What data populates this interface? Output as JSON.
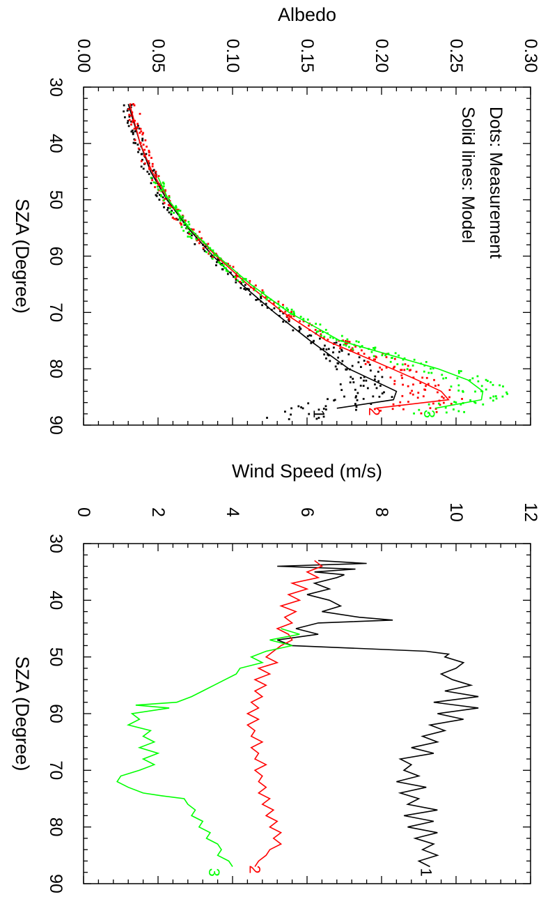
{
  "colors": {
    "black": "#000000",
    "red": "#ff0000",
    "green": "#00ff00"
  },
  "chart_data": [
    {
      "type": "scatter",
      "title": "",
      "xlabel": "SZA (Degree)",
      "ylabel": "Albedo",
      "xlim": [
        30,
        90
      ],
      "ylim": [
        0.0,
        0.3
      ],
      "x_ticks": [
        "30",
        "40",
        "50",
        "60",
        "70",
        "80",
        "90"
      ],
      "y_ticks": [
        "0.00",
        "0.05",
        "0.10",
        "0.15",
        "0.20",
        "0.25",
        "0.30"
      ],
      "annotations": [
        "Dots: Measurement",
        "Solid lines: Model"
      ],
      "orientation": "rotated-90",
      "grid": false,
      "series": [
        {
          "label": "1",
          "color": "#000000",
          "model_x": [
            33,
            40,
            45,
            50,
            55,
            60,
            65,
            70,
            75,
            80,
            82,
            84,
            85.5,
            87
          ],
          "model_y": [
            0.03,
            0.038,
            0.045,
            0.056,
            0.07,
            0.087,
            0.106,
            0.128,
            0.152,
            0.178,
            0.194,
            0.21,
            0.208,
            0.17
          ],
          "meas_x": [
            33,
            35,
            37,
            39,
            41,
            43,
            45,
            47,
            49,
            51,
            53,
            55,
            57,
            59,
            61,
            63,
            65,
            67,
            69,
            71,
            73,
            75,
            76,
            77,
            78,
            79,
            80,
            81,
            82,
            83,
            84,
            85,
            86,
            87,
            88
          ],
          "meas_y": [
            0.029,
            0.031,
            0.033,
            0.036,
            0.038,
            0.041,
            0.044,
            0.048,
            0.052,
            0.057,
            0.063,
            0.068,
            0.075,
            0.082,
            0.09,
            0.099,
            0.106,
            0.116,
            0.125,
            0.134,
            0.145,
            0.157,
            0.166,
            0.172,
            0.176,
            0.178,
            0.181,
            0.186,
            0.19,
            0.188,
            0.19,
            0.186,
            0.175,
            0.163,
            0.148
          ]
        },
        {
          "label": "2",
          "color": "#ff0000",
          "model_x": [
            33,
            40,
            45,
            50,
            55,
            60,
            65,
            70,
            75,
            80,
            82,
            84,
            85.5,
            87
          ],
          "model_y": [
            0.031,
            0.038,
            0.046,
            0.057,
            0.071,
            0.089,
            0.11,
            0.134,
            0.163,
            0.207,
            0.224,
            0.24,
            0.245,
            0.196
          ],
          "meas_x": [
            33,
            35,
            37,
            39,
            41,
            43,
            45,
            47,
            49,
            51,
            53,
            55,
            57,
            59,
            61,
            63,
            65,
            67,
            69,
            71,
            73,
            75,
            76,
            77,
            78,
            79,
            80,
            81,
            82,
            83,
            84,
            85,
            86,
            87
          ],
          "meas_y": [
            0.034,
            0.034,
            0.036,
            0.038,
            0.04,
            0.042,
            0.046,
            0.05,
            0.053,
            0.059,
            0.063,
            0.072,
            0.078,
            0.085,
            0.094,
            0.102,
            0.111,
            0.121,
            0.132,
            0.141,
            0.154,
            0.17,
            0.178,
            0.19,
            0.197,
            0.203,
            0.208,
            0.214,
            0.22,
            0.224,
            0.23,
            0.235,
            0.23,
            0.214
          ]
        },
        {
          "label": "3",
          "color": "#00ff00",
          "model_x": [
            46,
            50,
            55,
            60,
            65,
            70,
            75,
            80,
            82,
            84,
            85.5,
            87
          ],
          "model_y": [
            0.05,
            0.057,
            0.071,
            0.09,
            0.112,
            0.138,
            0.172,
            0.238,
            0.258,
            0.268,
            0.267,
            0.236
          ],
          "meas_x": [
            46,
            48,
            50,
            52,
            54,
            56,
            58,
            60,
            62,
            64,
            66,
            68,
            70,
            72,
            74,
            75,
            76,
            77,
            78,
            79,
            80,
            81,
            82,
            83,
            84,
            85,
            86,
            87
          ],
          "meas_y": [
            0.048,
            0.052,
            0.056,
            0.062,
            0.067,
            0.072,
            0.079,
            0.087,
            0.096,
            0.105,
            0.116,
            0.128,
            0.14,
            0.153,
            0.166,
            0.174,
            0.185,
            0.196,
            0.207,
            0.219,
            0.232,
            0.245,
            0.256,
            0.264,
            0.27,
            0.266,
            0.258,
            0.245
          ]
        }
      ],
      "end_labels": [
        {
          "text": "1",
          "x": 88.0,
          "y": 0.158
        },
        {
          "text": "2",
          "x": 87.6,
          "y": 0.195
        },
        {
          "text": "3",
          "x": 88.0,
          "y": 0.232
        }
      ]
    },
    {
      "type": "line",
      "title": "",
      "xlabel": "SZA (Degree)",
      "ylabel": "Wind Speed (m/s)",
      "xlim": [
        30,
        90
      ],
      "ylim": [
        0,
        12
      ],
      "x_ticks": [
        "30",
        "40",
        "50",
        "60",
        "70",
        "80",
        "90"
      ],
      "y_ticks": [
        "0",
        "2",
        "4",
        "6",
        "8",
        "10",
        "12"
      ],
      "orientation": "rotated-90",
      "grid": false,
      "series": [
        {
          "label": "1",
          "color": "#000000",
          "x": [
            33,
            33.5,
            34,
            34.5,
            35,
            35.5,
            36,
            37,
            38,
            39,
            40,
            41,
            42,
            43,
            43.5,
            44,
            45,
            46,
            47,
            48,
            49,
            49.5,
            50,
            51,
            52,
            53,
            54,
            55,
            56,
            57,
            58,
            59,
            60,
            61,
            62,
            63,
            64,
            65,
            66,
            67,
            68,
            69,
            70,
            71,
            72,
            73,
            74,
            75,
            76,
            77,
            78,
            79,
            80,
            81,
            82,
            83,
            84,
            85,
            86,
            87
          ],
          "y": [
            6.3,
            7.6,
            5.2,
            7.3,
            6.2,
            7.0,
            6.8,
            6.2,
            6.6,
            6.0,
            6.6,
            6.9,
            6.4,
            7.4,
            8.3,
            6.3,
            5.7,
            6.3,
            5.2,
            5.6,
            9.2,
            9.8,
            9.7,
            10.2,
            10.0,
            9.6,
            9.9,
            10.4,
            9.7,
            10.6,
            9.4,
            10.6,
            9.5,
            10.2,
            9.3,
            9.7,
            9.1,
            9.5,
            8.8,
            9.4,
            8.5,
            8.8,
            8.6,
            9.0,
            8.4,
            9.2,
            8.5,
            9.0,
            8.7,
            9.5,
            8.6,
            9.4,
            8.7,
            9.5,
            8.9,
            9.4,
            9.1,
            9.5,
            9.0,
            9.3
          ]
        },
        {
          "label": "2",
          "color": "#ff0000",
          "x": [
            33,
            34,
            35,
            36,
            37,
            38,
            39,
            40,
            41,
            42,
            43,
            44,
            45,
            46,
            47,
            48,
            49,
            50,
            51,
            52,
            53,
            54,
            55,
            56,
            57,
            58,
            59,
            60,
            61,
            62,
            63,
            64,
            65,
            66,
            67,
            68,
            69,
            70,
            71,
            72,
            73,
            74,
            75,
            76,
            77,
            78,
            79,
            80,
            81,
            82,
            83,
            84,
            85,
            86,
            87
          ],
          "y": [
            6.2,
            6.4,
            6.0,
            6.3,
            5.6,
            6.0,
            5.5,
            5.8,
            5.3,
            5.7,
            5.4,
            5.6,
            5.2,
            5.5,
            5.6,
            5.3,
            5.1,
            4.9,
            5.2,
            4.7,
            5.0,
            4.6,
            4.9,
            4.6,
            4.8,
            4.5,
            4.7,
            4.4,
            4.7,
            4.4,
            4.6,
            4.5,
            4.8,
            4.5,
            4.7,
            4.6,
            4.9,
            4.6,
            4.8,
            4.7,
            4.9,
            4.7,
            5.0,
            4.8,
            5.1,
            4.9,
            5.2,
            5.0,
            5.3,
            5.1,
            5.3,
            5.0,
            4.9,
            4.7,
            4.6
          ]
        },
        {
          "label": "3",
          "color": "#00ff00",
          "x": [
            45,
            46,
            47,
            48,
            49,
            50,
            51,
            52,
            53,
            54,
            55,
            56,
            57,
            58,
            58.5,
            59,
            60,
            61,
            62,
            63,
            64,
            65,
            66,
            67,
            68,
            69,
            70,
            71,
            72,
            73,
            74,
            74.5,
            75,
            76,
            77,
            78,
            79,
            80,
            81,
            82,
            83,
            84,
            85,
            86,
            87
          ],
          "y": [
            5.3,
            5.8,
            5.0,
            5.6,
            4.9,
            4.5,
            4.8,
            4.2,
            4.1,
            3.8,
            3.5,
            3.2,
            2.9,
            2.5,
            1.4,
            2.3,
            1.3,
            1.5,
            1.2,
            1.8,
            1.6,
            1.9,
            1.5,
            2.0,
            1.6,
            1.9,
            1.5,
            1.0,
            0.9,
            1.2,
            1.6,
            2.1,
            2.7,
            2.8,
            3.0,
            2.9,
            3.2,
            3.1,
            3.4,
            3.3,
            3.6,
            3.7,
            3.6,
            3.9,
            4.0
          ]
        }
      ],
      "end_labels": [
        {
          "text": "1",
          "x": 88.0,
          "y": 9.2
        },
        {
          "text": "2",
          "x": 87.5,
          "y": 4.6
        },
        {
          "text": "3",
          "x": 88.0,
          "y": 3.5
        }
      ]
    }
  ]
}
